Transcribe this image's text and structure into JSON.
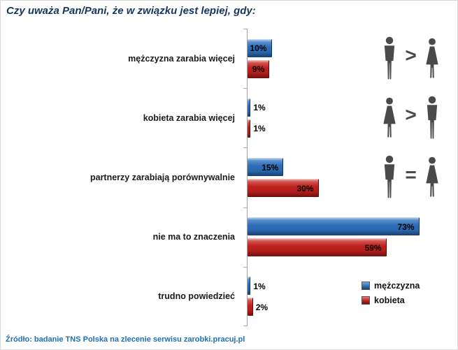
{
  "source": "Źródło: badanie TNS Polska na zlecenie serwisu zarobki.pracuj.pl",
  "legend": [
    {
      "label": "mężczyzna",
      "color": "#2E6DB5"
    },
    {
      "label": "kobieta",
      "color": "#C0201E"
    }
  ],
  "chart_data": {
    "type": "bar",
    "orientation": "horizontal",
    "title": "Czy uważa Pan/Pani, że w związku jest lepiej, gdy:",
    "xlabel": "",
    "ylabel": "",
    "xlim": [
      0,
      80
    ],
    "grid": false,
    "legend_position": "bottom-right",
    "categories": [
      "mężczyzna zarabia więcej",
      "kobieta zarabia więcej",
      "partnerzy zarabiają porównywalnie",
      "nie ma to znaczenia",
      "trudno powiedzieć"
    ],
    "series": [
      {
        "name": "mężczyzna",
        "color": "#2E6DB5",
        "values": [
          10,
          1,
          15,
          73,
          1
        ]
      },
      {
        "name": "kobieta",
        "color": "#C0201E",
        "values": [
          9,
          1,
          30,
          59,
          2
        ]
      }
    ],
    "value_labels": [
      [
        "10%",
        "9%"
      ],
      [
        "1%",
        "1%"
      ],
      [
        "15%",
        "30%"
      ],
      [
        "73%",
        "59%"
      ],
      [
        "1%",
        "2%"
      ]
    ],
    "row_icons": [
      {
        "left": "man-silhouette",
        "symbol": ">",
        "right": "woman-silhouette"
      },
      {
        "left": "woman-silhouette",
        "symbol": ">",
        "right": "man-silhouette"
      },
      {
        "left": "man-silhouette",
        "symbol": "=",
        "right": "woman-silhouette"
      }
    ]
  }
}
